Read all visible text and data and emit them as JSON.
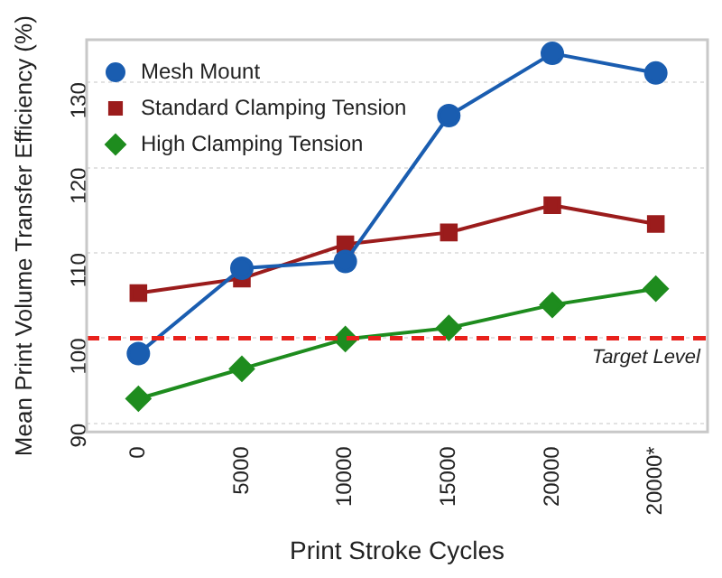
{
  "chart_data": {
    "type": "line",
    "xlabel": "Print Stroke Cycles",
    "ylabel": "Mean Print Volume Transfer Efficiency (%)",
    "categories": [
      "0",
      "5000",
      "10000",
      "15000",
      "20000",
      "20000*"
    ],
    "series": [
      {
        "name": "Mesh Mount",
        "color": "#1a5db0",
        "marker": "circle",
        "values": [
          98.2,
          108.2,
          109.0,
          126.1,
          133.4,
          131.1
        ]
      },
      {
        "name": "Standard Clamping Tension",
        "color": "#9b1c1c",
        "marker": "square",
        "values": [
          105.3,
          107.0,
          111.0,
          112.4,
          115.6,
          113.4
        ]
      },
      {
        "name": "High Clamping Tension",
        "color": "#1e8c1e",
        "marker": "diamond",
        "values": [
          92.9,
          96.4,
          99.9,
          101.2,
          103.9,
          105.8
        ]
      }
    ],
    "ylim": [
      89,
      135
    ],
    "yticks": [
      90,
      100,
      110,
      120,
      130
    ],
    "grid": "y",
    "legend": "top left",
    "line_style": "solid",
    "ref_lines": [
      {
        "axis": "y",
        "value": 100,
        "label": "Target Level",
        "color": "#e8211c",
        "line_style": "dashed"
      }
    ]
  }
}
